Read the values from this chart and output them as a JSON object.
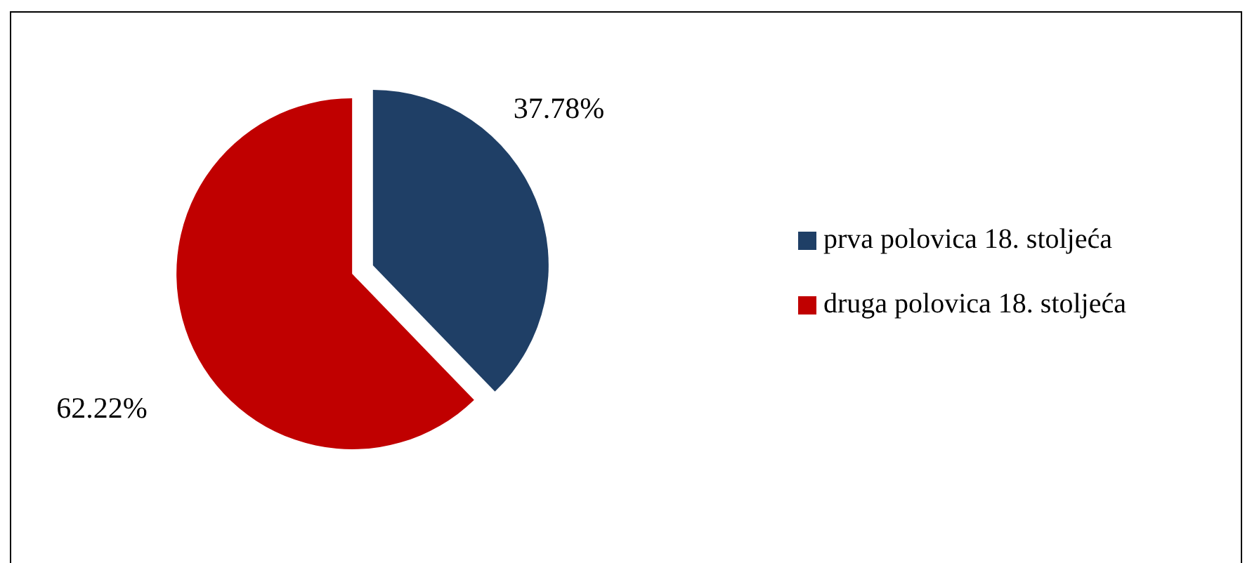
{
  "chart_data": {
    "type": "pie",
    "categories": [
      "prva polovica 18. stoljeća",
      "druga polovica 18. stoljeća"
    ],
    "values": [
      37.78,
      62.22
    ],
    "colors": [
      "#1f3f66",
      "#c00000"
    ],
    "value_labels": [
      "37.78%",
      "62.22%"
    ],
    "legend": "right"
  }
}
